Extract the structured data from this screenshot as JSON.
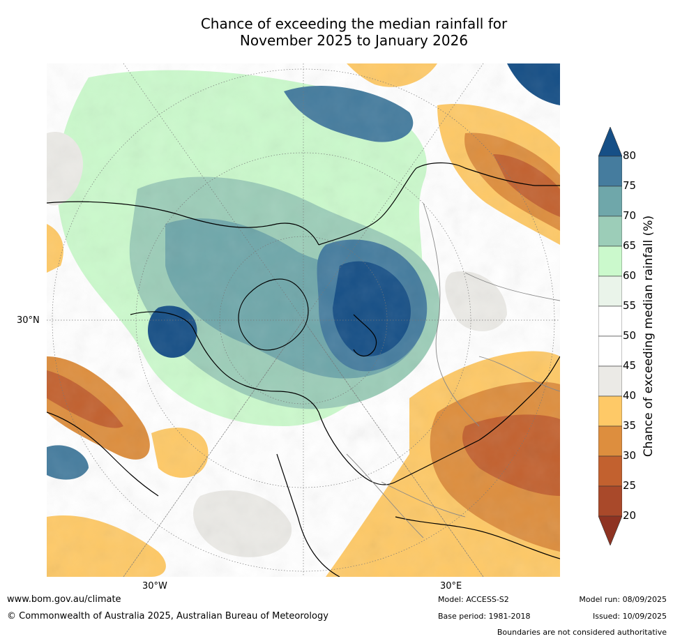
{
  "title_line1": "Chance of exceeding the median rainfall for",
  "title_line2": "November 2025 to January 2026",
  "map": {
    "lat_label": "30°N",
    "lon_label_west": "30°W",
    "lon_label_east": "30°E"
  },
  "colorbar": {
    "label": "Chance of exceeding median rainfall (%)",
    "ticks": [
      "80",
      "75",
      "70",
      "65",
      "60",
      "55",
      "50",
      "45",
      "40",
      "35",
      "30",
      "25",
      "20"
    ],
    "colors": [
      "#164f86",
      "#457c9e",
      "#6fa7aa",
      "#9ccdb8",
      "#cbf9cc",
      "#eaf4ea",
      "#ffffff",
      "#ffffff",
      "#ebeae6",
      "#fec967",
      "#dd8e3e",
      "#c2612f",
      "#a9492a",
      "#8e3322"
    ]
  },
  "footer": {
    "url": "www.bom.gov.au/climate",
    "copyright": "© Commonwealth of Australia 2025, Australian Bureau of Meteorology",
    "model": "Model: ACCESS-S2",
    "base_period": "Base period: 1981-2018",
    "model_run": "Model run: 08/09/2025",
    "issued": "Issued: 10/09/2025",
    "disclaimer": "Boundaries are not considered authoritative"
  }
}
